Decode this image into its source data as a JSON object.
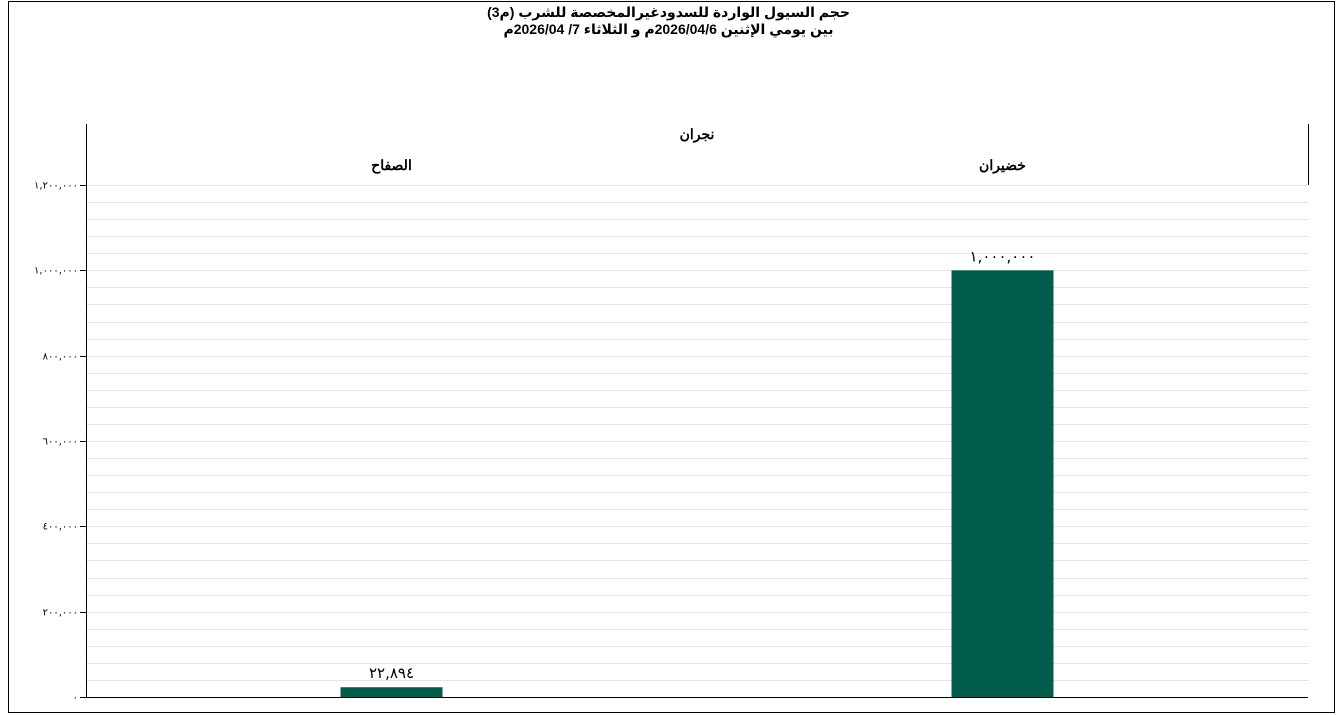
{
  "chart_data": {
    "type": "bar",
    "title": "حجم السيول الواردة للسدودغيرالمخصصة للشرب (م3)",
    "subtitle": "بين يومي الإثنين 2026/04/6م و الثلاثاء 7/ 2026/04م",
    "group": "نجران",
    "categories": [
      "الصفاح",
      "خضيران"
    ],
    "values": [
      22894,
      1000000
    ],
    "value_labels": [
      "٢٢,٨٩٤",
      "١,٠٠٠,٠٠٠"
    ],
    "ylim": [
      0,
      1200000
    ],
    "yticks": [
      0,
      200000,
      400000,
      600000,
      800000,
      1000000,
      1200000
    ],
    "ytick_labels": [
      "٠",
      "٢٠٠,٠٠٠",
      "٤٠٠,٠٠٠",
      "٦٠٠,٠٠٠",
      "٨٠٠,٠٠٠",
      "١,٠٠٠,٠٠٠",
      "١,٢٠٠,٠٠٠"
    ],
    "minor_gridlines_per_major": 5,
    "grid": true,
    "bar_color": "#005c4b",
    "gridline_color": "#e4e4e4",
    "xlabel": "",
    "ylabel": ""
  }
}
